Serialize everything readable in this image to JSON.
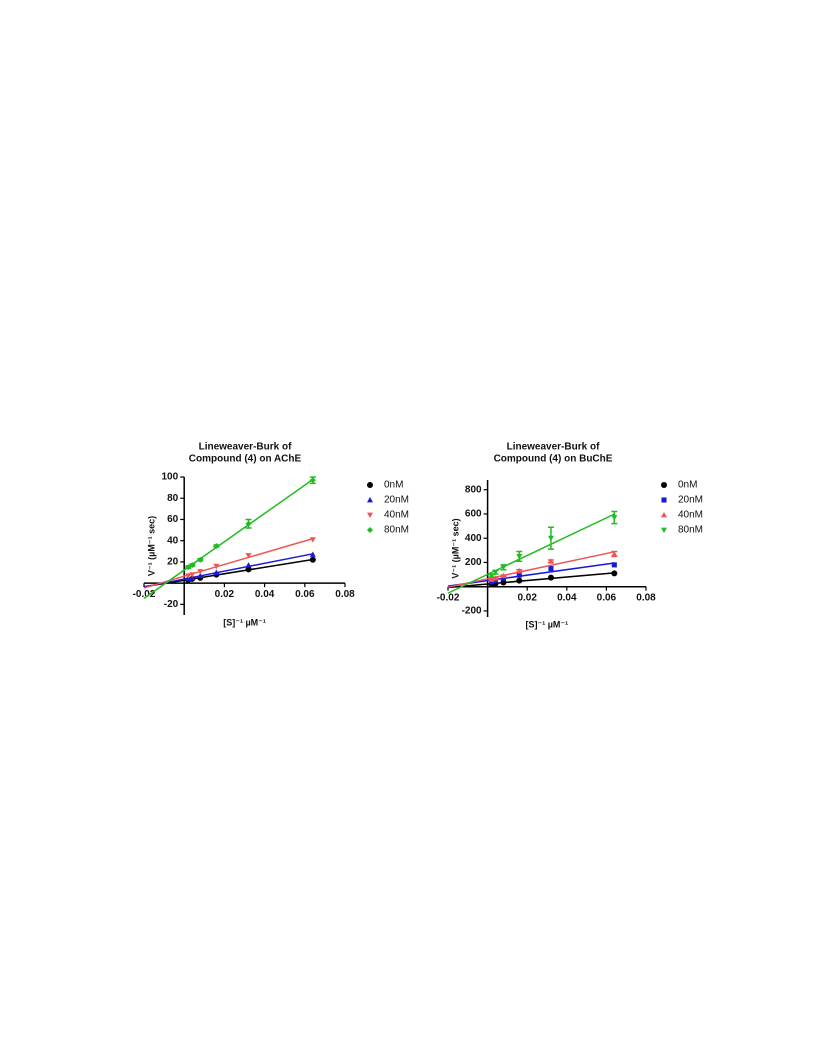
{
  "chart_data": [
    {
      "type": "scatter",
      "title": [
        "Lineweaver-Burk of",
        "Compound (4) on AChE"
      ],
      "x_label": "[S]⁻¹ µM⁻¹",
      "y_label": "V⁻¹ (µM⁻¹ sec)",
      "x": [
        0.002,
        0.004,
        0.008,
        0.016,
        0.032,
        0.064
      ],
      "xlim": [
        -0.02,
        0.08
      ],
      "xticks": [
        -0.02,
        0.02,
        0.04,
        0.06,
        0.08
      ],
      "ylim": [
        -30,
        100
      ],
      "yticks": [
        -20,
        20,
        40,
        60,
        80,
        100
      ],
      "fit_lines": true,
      "series": [
        {
          "name": "0nM",
          "color": "#000000",
          "marker": "circle",
          "values": [
            3,
            4,
            5,
            8,
            13,
            22
          ]
        },
        {
          "name": "20nM",
          "color": "#1a1ad6",
          "marker": "triangle-up",
          "values": [
            4,
            5,
            7,
            10,
            17,
            27
          ]
        },
        {
          "name": "40nM",
          "color": "#f05555",
          "marker": "triangle-down",
          "values": [
            7,
            8,
            11,
            16,
            26,
            41
          ]
        },
        {
          "name": "80nM",
          "color": "#22bb22",
          "marker": "diamond",
          "values": [
            15,
            17,
            22,
            35,
            56,
            97
          ],
          "errors": [
            1,
            1,
            1,
            1,
            4,
            3
          ]
        }
      ]
    },
    {
      "type": "scatter",
      "title": [
        "Lineweaver-Burk of",
        "Compound (4) on BuChE"
      ],
      "x_label": "[S]⁻¹ µM⁻¹",
      "y_label": "V⁻¹ (µM⁻¹ sec)",
      "x": [
        0.002,
        0.004,
        0.008,
        0.016,
        0.032,
        0.064
      ],
      "xlim": [
        -0.02,
        0.08
      ],
      "xticks": [
        -0.02,
        0.02,
        0.04,
        0.06,
        0.08
      ],
      "ylim": [
        -250,
        880
      ],
      "yticks": [
        -200,
        200,
        400,
        600,
        800
      ],
      "fit_lines": true,
      "series": [
        {
          "name": "0nM",
          "color": "#000000",
          "marker": "circle",
          "values": [
            20,
            25,
            35,
            50,
            75,
            110
          ]
        },
        {
          "name": "20nM",
          "color": "#1a1ad6",
          "marker": "square",
          "values": [
            40,
            50,
            70,
            95,
            150,
            180
          ]
        },
        {
          "name": "40nM",
          "color": "#f05555",
          "marker": "triangle-up",
          "values": [
            60,
            70,
            90,
            130,
            210,
            270
          ],
          "errors": [
            5,
            5,
            5,
            10,
            10,
            20
          ]
        },
        {
          "name": "80nM",
          "color": "#22bb22",
          "marker": "triangle-down",
          "values": [
            90,
            120,
            160,
            250,
            400,
            570
          ],
          "errors": [
            10,
            15,
            20,
            40,
            90,
            50
          ]
        }
      ]
    }
  ]
}
